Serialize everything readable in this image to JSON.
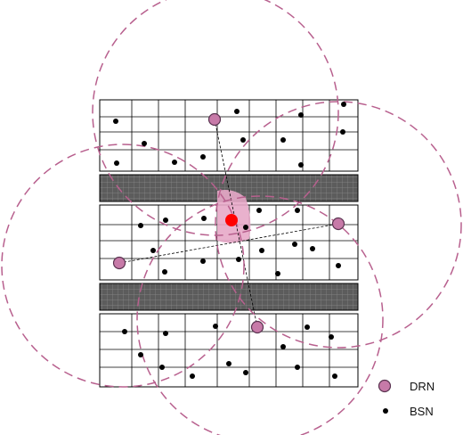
{
  "colors": {
    "drn_fill": "#c77aa8",
    "drn_stroke": "#5a3350",
    "bsn_fill": "#000000",
    "circle_stroke": "#b8608e",
    "target_fill": "#ff0000",
    "overlap_fill": "#e7a8c8",
    "road_fill": "#5c5c5c",
    "grid_stroke": "#000000"
  },
  "legend": {
    "drn_label": "DRN",
    "bsn_label": "BSN"
  }
}
